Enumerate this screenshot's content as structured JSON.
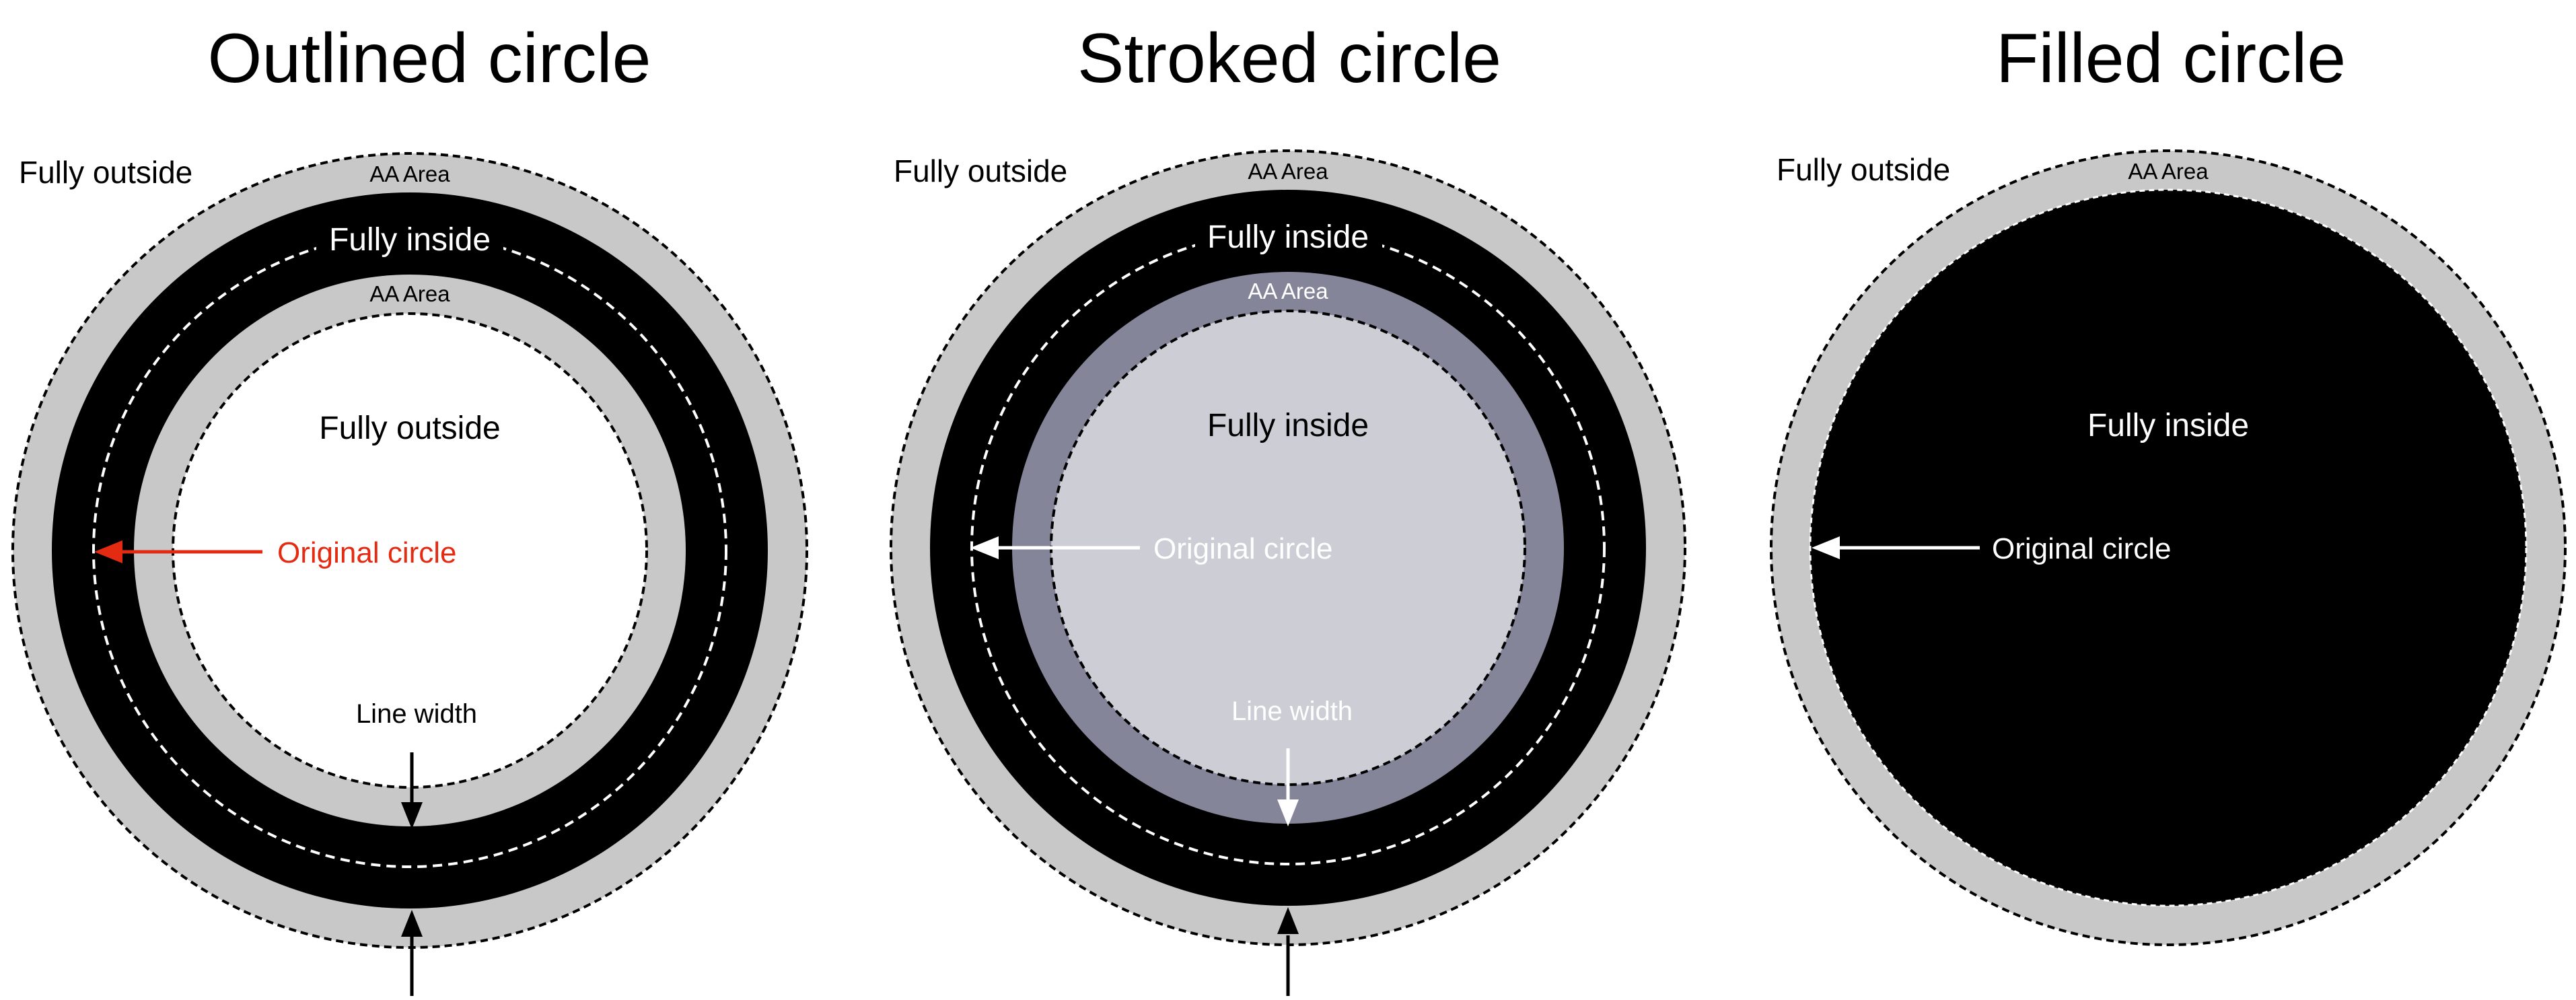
{
  "colors": {
    "black": "#000000",
    "aa_gray": "#c8c8c8",
    "stroke_purple": "#858599",
    "stroke_light": "#cdcdd6",
    "original_red": "#e52a12",
    "white": "#ffffff"
  },
  "panels": [
    {
      "title": "Outlined circle",
      "labels": {
        "fully_outside_top": "Fully outside",
        "aa_area_outer": "AA Area",
        "fully_inside": "Fully inside",
        "aa_area_inner": "AA Area",
        "fully_outside_center": "Fully outside",
        "original_circle": "Original circle",
        "line_width": "Line width"
      }
    },
    {
      "title": "Stroked circle",
      "labels": {
        "fully_outside_top": "Fully outside",
        "aa_area_outer": "AA Area",
        "fully_inside": "Fully inside",
        "aa_area_inner": "AA Area",
        "fully_inside_center": "Fully inside",
        "original_circle": "Original circle",
        "line_width": "Line width"
      }
    },
    {
      "title": "Filled circle",
      "labels": {
        "fully_outside_top": "Fully outside",
        "aa_area_outer": "AA Area",
        "fully_inside_center": "Fully inside",
        "original_circle": "Original circle"
      }
    }
  ]
}
